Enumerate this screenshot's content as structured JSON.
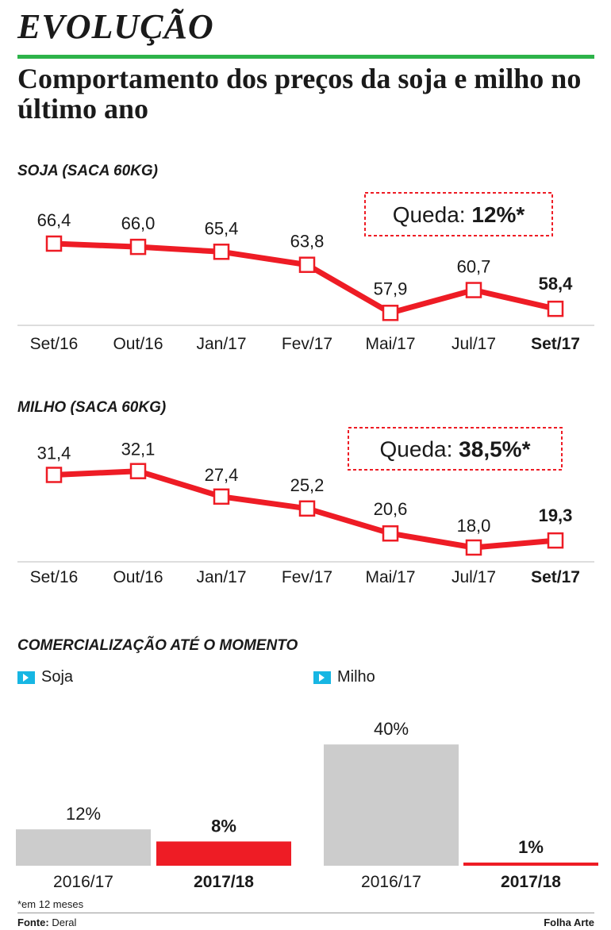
{
  "kicker": "EVOLUÇÃO",
  "headline": "Comportamento dos preços da soja e milho no último ano",
  "colors": {
    "accent_green": "#2db34a",
    "line_red": "#ee1c25",
    "bar_gray": "#cccccc",
    "legend_blue": "#17b6e3"
  },
  "chart_data": [
    {
      "type": "line",
      "title": "SOJA (SACA 60KG)",
      "categories": [
        "Set/16",
        "Out/16",
        "Jan/17",
        "Fev/17",
        "Mai/17",
        "Jul/17",
        "Set/17"
      ],
      "labels": [
        "66,4",
        "66,0",
        "65,4",
        "63,8",
        "57,9",
        "60,7",
        "58,4"
      ],
      "values": [
        66.4,
        66.0,
        65.4,
        63.8,
        57.9,
        60.7,
        58.4
      ],
      "callout_label": "Queda: ",
      "callout_value": "12%*"
    },
    {
      "type": "line",
      "title": "MILHO (SACA 60KG)",
      "categories": [
        "Set/16",
        "Out/16",
        "Jan/17",
        "Fev/17",
        "Mai/17",
        "Jul/17",
        "Set/17"
      ],
      "labels": [
        "31,4",
        "32,1",
        "27,4",
        "25,2",
        "20,6",
        "18,0",
        "19,3"
      ],
      "values": [
        31.4,
        32.1,
        27.4,
        25.2,
        20.6,
        18.0,
        19.3
      ],
      "callout_label": "Queda: ",
      "callout_value": "38,5%*"
    },
    {
      "type": "bar",
      "title": "COMERCIALIZAÇÃO ATÉ O MOMENTO",
      "groups": [
        {
          "name": "Soja",
          "categories": [
            "2016/17",
            "2017/18"
          ],
          "values": [
            12,
            8
          ],
          "labels": [
            "12%",
            "8%"
          ]
        },
        {
          "name": "Milho",
          "categories": [
            "2016/17",
            "2017/18"
          ],
          "values": [
            40,
            1
          ],
          "labels": [
            "40%",
            "1%"
          ]
        }
      ]
    }
  ],
  "note": "*em 12 meses",
  "source_label": "Fonte:",
  "source_value": "Deral",
  "credit": "Folha Arte"
}
